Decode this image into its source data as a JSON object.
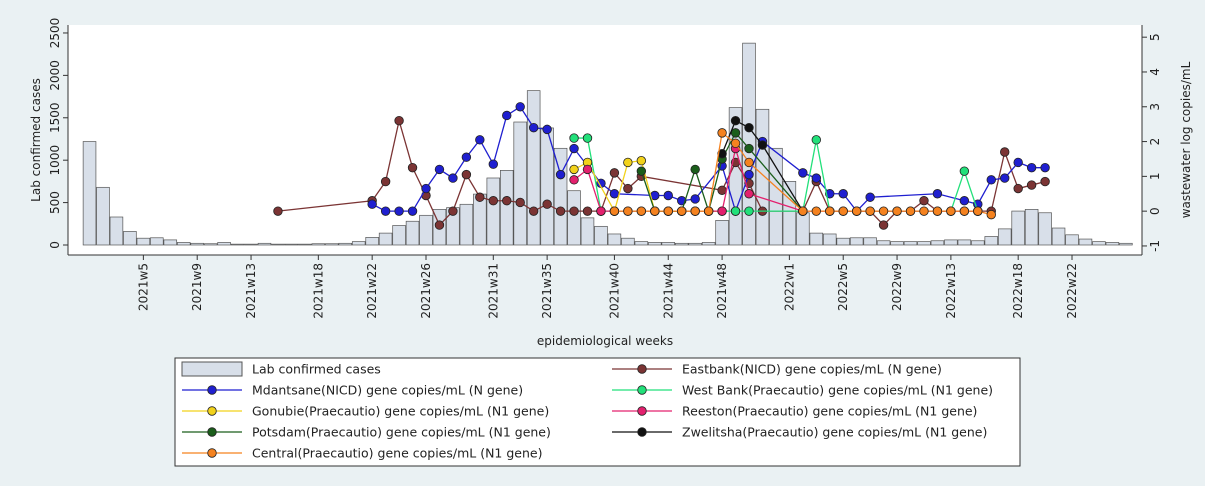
{
  "chart_data": {
    "type": "combo",
    "ylabel": "Lab confirmed cases",
    "y2label": "wastewater log copies/mL",
    "xlabel": "epidemiological weeks",
    "ylim": [
      -118,
      2594
    ],
    "yticks": [
      0,
      500,
      1000,
      1500,
      2000,
      2500
    ],
    "y2lim": [
      -1.26,
      5.35
    ],
    "y2ticks": [
      -1,
      0,
      1,
      2,
      3,
      4,
      5
    ],
    "xlim": [
      -0.6,
      79.2
    ],
    "xticks": [
      {
        "value": 5,
        "label": "2021w5"
      },
      {
        "value": 9,
        "label": "2021w9"
      },
      {
        "value": 13,
        "label": "2021w13"
      },
      {
        "value": 18,
        "label": "2021w18"
      },
      {
        "value": 22,
        "label": "2021w22"
      },
      {
        "value": 26,
        "label": "2021w26"
      },
      {
        "value": 31,
        "label": "2021w31"
      },
      {
        "value": 35,
        "label": "2021w35"
      },
      {
        "value": 40,
        "label": "2021w40"
      },
      {
        "value": 44,
        "label": "2021w44"
      },
      {
        "value": 48,
        "label": "2021w48"
      },
      {
        "value": 53,
        "label": "2022w1"
      },
      {
        "value": 57,
        "label": "2022w5"
      },
      {
        "value": 61,
        "label": "2022w9"
      },
      {
        "value": 65,
        "label": "2022w13"
      },
      {
        "value": 70,
        "label": "2022w18"
      },
      {
        "value": 74,
        "label": "2022w22"
      }
    ],
    "series": [
      {
        "name": "Lab confirmed cases",
        "type": "bar",
        "color": "#d8dfe9",
        "x": [
          1,
          2,
          3,
          4,
          5,
          6,
          7,
          8,
          9,
          10,
          11,
          12,
          13,
          14,
          15,
          16,
          17,
          18,
          19,
          20,
          21,
          22,
          23,
          24,
          25,
          26,
          27,
          28,
          29,
          30,
          31,
          32,
          33,
          34,
          35,
          36,
          37,
          38,
          39,
          40,
          41,
          42,
          43,
          44,
          45,
          46,
          47,
          48,
          49,
          50,
          51,
          52,
          53,
          54,
          55,
          56,
          57,
          58,
          59,
          60,
          61,
          62,
          63,
          64,
          65,
          66,
          67,
          68,
          69,
          70,
          71,
          72,
          73,
          74,
          75,
          76,
          77,
          78
        ],
        "values": [
          1220,
          680,
          330,
          160,
          80,
          85,
          60,
          30,
          20,
          15,
          30,
          10,
          10,
          20,
          10,
          10,
          10,
          15,
          15,
          20,
          40,
          90,
          140,
          230,
          280,
          350,
          420,
          440,
          480,
          600,
          790,
          880,
          1450,
          1820,
          1380,
          1140,
          640,
          320,
          220,
          130,
          80,
          40,
          30,
          30,
          20,
          20,
          30,
          290,
          1620,
          2380,
          1600,
          1140,
          750,
          380,
          140,
          130,
          80,
          85,
          85,
          50,
          40,
          40,
          40,
          50,
          60,
          60,
          50,
          100,
          190,
          400,
          420,
          380,
          200,
          120,
          70,
          40,
          30,
          20
        ]
      },
      {
        "name": "Eastbank(NICD) gene copies/mL (N gene)",
        "type": "line",
        "axis": "y2",
        "color": "#7b3434",
        "x": [
          15,
          22,
          23,
          24,
          25,
          26,
          27,
          28,
          29,
          30,
          31,
          32,
          33,
          34,
          35,
          36,
          37,
          38,
          39,
          40,
          41,
          42,
          48,
          49,
          50,
          51,
          54,
          55,
          56,
          57,
          58,
          59,
          60,
          61,
          62,
          63,
          64,
          65,
          66,
          67,
          68,
          69,
          70,
          71,
          72
        ],
        "values": [
          0,
          0.3,
          0.85,
          2.6,
          1.25,
          0.45,
          -0.4,
          0,
          1.05,
          0.4,
          0.3,
          0.3,
          0.25,
          0,
          0.2,
          0,
          0,
          0,
          0,
          1.1,
          0.65,
          1.0,
          0.6,
          1.4,
          0.8,
          0,
          0,
          0.85,
          0,
          0,
          0,
          0,
          -0.4,
          0,
          0,
          0.3,
          0,
          0,
          0,
          0,
          0,
          1.7,
          0.65,
          0.75,
          0.85
        ]
      },
      {
        "name": "Mdantsane(NICD) gene copies/mL (N gene)",
        "type": "line",
        "axis": "y2",
        "color": "#1f1fd0",
        "x": [
          22,
          23,
          24,
          25,
          26,
          27,
          28,
          29,
          30,
          31,
          32,
          33,
          34,
          35,
          36,
          37,
          39,
          40,
          43,
          44,
          45,
          46,
          48,
          49,
          50,
          51,
          54,
          55,
          56,
          57,
          58,
          59,
          64,
          66,
          67,
          68,
          69,
          70,
          71,
          72
        ],
        "values": [
          0.2,
          0,
          0,
          0,
          0.65,
          1.2,
          0.95,
          1.55,
          2.05,
          1.35,
          2.75,
          3.0,
          2.4,
          2.35,
          1.05,
          1.8,
          0.8,
          0.5,
          0.45,
          0.45,
          0.3,
          0.35,
          1.3,
          0,
          1.05,
          2.0,
          1.1,
          0.95,
          0.5,
          0.5,
          0,
          0.4,
          0.5,
          0.3,
          0.2,
          0.9,
          0.95,
          1.4,
          1.25,
          1.25
        ]
      },
      {
        "name": "West Bank(Praecautio) gene copies/mL (N1 gene)",
        "type": "line",
        "axis": "y2",
        "color": "#22e07a",
        "x": [
          37,
          38,
          39,
          40,
          49,
          50,
          54,
          55,
          56,
          65,
          66,
          67
        ],
        "values": [
          2.1,
          2.1,
          0,
          0,
          0,
          0,
          0,
          2.05,
          0,
          0,
          1.15,
          0
        ]
      },
      {
        "name": "Gonubie(Praecautio) gene copies/mL (N1 gene)",
        "type": "line",
        "axis": "y2",
        "color": "#f2d21b",
        "x": [
          37,
          38,
          40,
          41,
          42,
          43,
          44,
          45,
          46,
          47,
          48
        ],
        "values": [
          1.2,
          1.4,
          0,
          1.4,
          1.45,
          0,
          0,
          0,
          0,
          0,
          0
        ]
      },
      {
        "name": "Reeston(Praecautio) gene copies/mL (N1 gene)",
        "type": "line",
        "axis": "y2",
        "color": "#e3206e",
        "x": [
          37,
          38,
          39,
          40,
          41,
          42,
          43,
          44,
          45,
          46,
          47,
          48,
          49,
          50,
          54,
          67
        ],
        "values": [
          0.9,
          1.2,
          0,
          0,
          0,
          0,
          0,
          0,
          0,
          0,
          0,
          0,
          1.8,
          0.5,
          0,
          0
        ]
      },
      {
        "name": "Potsdam(Praecautio) gene copies/mL (N1 gene)",
        "type": "line",
        "axis": "y2",
        "color": "#1b5e1b",
        "x": [
          42,
          43,
          44,
          45,
          46,
          47,
          48,
          49,
          50,
          54
        ],
        "values": [
          1.15,
          0,
          0,
          0,
          1.2,
          0,
          1.5,
          2.25,
          1.8,
          0
        ]
      },
      {
        "name": "Zwelitsha(Praecautio) gene copies/mL (N1 gene)",
        "type": "line",
        "axis": "y2",
        "color": "#111111",
        "x": [
          48,
          49,
          50,
          51,
          54
        ],
        "values": [
          1.65,
          2.6,
          2.4,
          1.9,
          0
        ]
      },
      {
        "name": "Central(Praecautio) gene copies/mL (N1 gene)",
        "type": "line",
        "axis": "y2",
        "color": "#f5821f",
        "x": [
          40,
          41,
          42,
          43,
          44,
          45,
          46,
          47,
          48,
          49,
          50,
          54,
          55,
          56,
          57,
          58,
          59,
          60,
          61,
          62,
          63,
          64,
          65,
          66,
          67,
          68
        ],
        "values": [
          0,
          0,
          0,
          0,
          0,
          0,
          0,
          0,
          2.25,
          1.95,
          1.4,
          0,
          0,
          0,
          0,
          0,
          0,
          0,
          0,
          0,
          0,
          0,
          0,
          0,
          0,
          -0.1
        ]
      }
    ]
  }
}
